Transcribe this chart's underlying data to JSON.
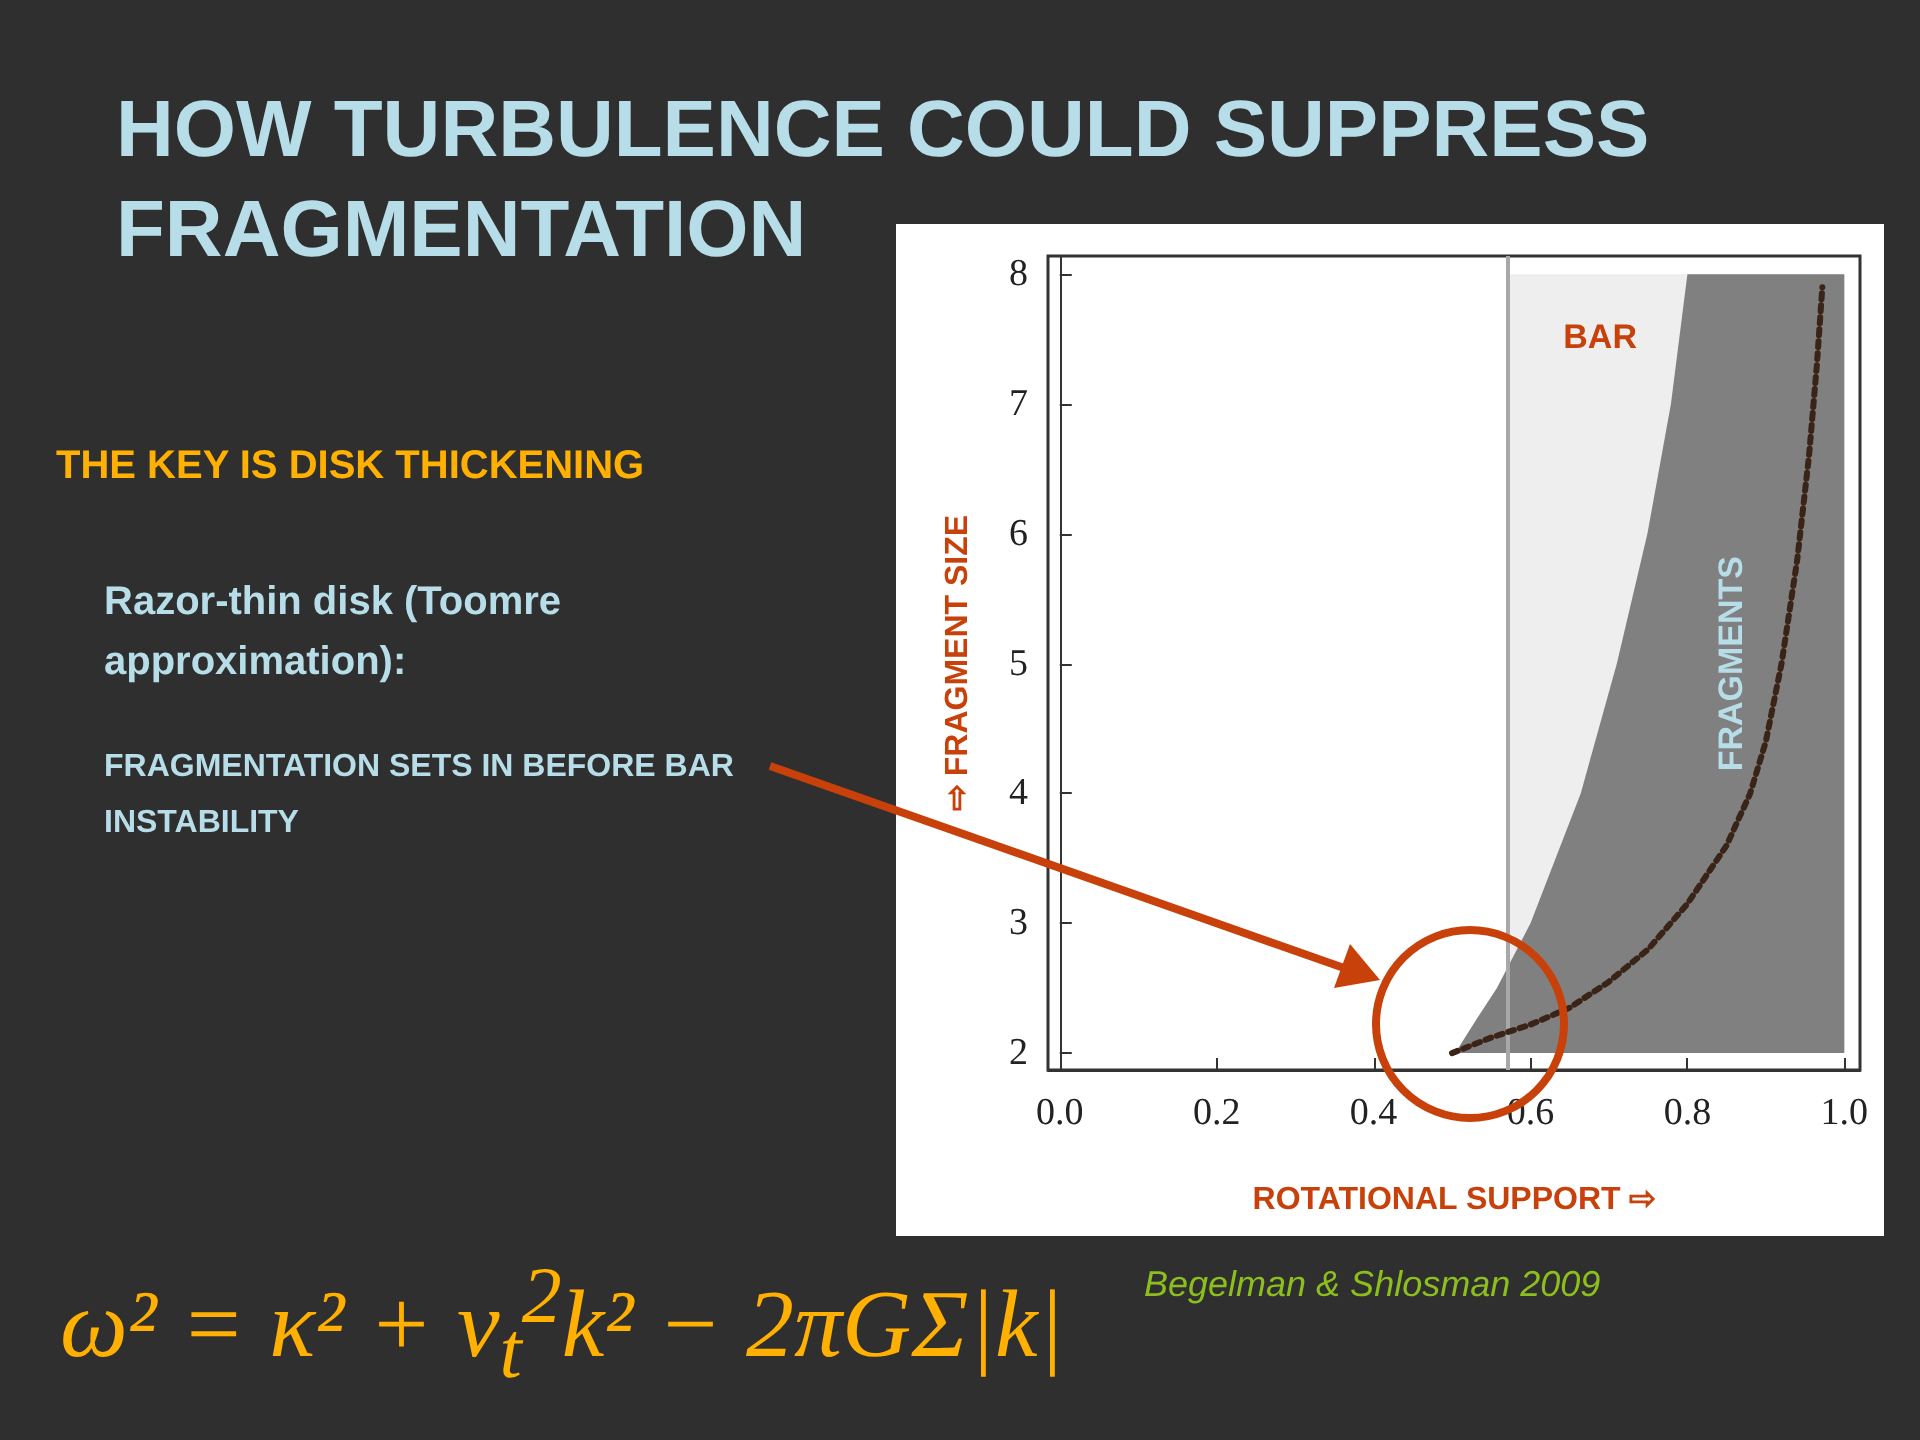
{
  "chart_data": {
    "type": "area",
    "title": "HOW TURBULENCE COULD SUPPRESS FRAGMENTATION",
    "xlabel": "ROTATIONAL SUPPORT ⇨",
    "ylabel": "⇨ FRAGMENT SIZE",
    "annotations": [
      "THE KEY IS DISK THICKENING",
      "Razor-thin disk (Toomre approximation):",
      "FRAGMENTATION SETS IN BEFORE BAR INSTABILITY",
      "ω² = κ² + v$_{t}$$^{2}$k² − 2πGΣ|k|",
      "Begelman & Shlosman 2009"
    ],
    "series": [
      {
        "name": "FRAGMENTS",
        "color": "#808080",
        "x": [
          0.504,
          0.53,
          0.557,
          0.6,
          0.664,
          0.71,
          0.749,
          0.779,
          0.8,
          1.0
        ],
        "values": [
          2,
          2.25,
          2.5,
          3,
          4,
          5,
          6,
          7,
          8,
          8
        ]
      },
      {
        "type": "line",
        "color": "#3a2418",
        "line_style": "dotted",
        "marker": "none",
        "x": [
          0.5,
          0.55,
          0.6,
          0.65,
          0.7,
          0.75,
          0.8,
          0.85,
          0.88,
          0.9,
          0.92,
          0.94,
          0.955,
          0.965,
          0.972
        ],
        "values": [
          2,
          2.12,
          2.22,
          2.35,
          2.55,
          2.8,
          3.15,
          3.6,
          4.0,
          4.4,
          5.0,
          5.8,
          6.6,
          7.3,
          7.9
        ]
      }
    ],
    "bands": [
      {
        "axis": "x",
        "from": 0.573,
        "to": 1.0,
        "label": "BAR",
        "color": "#eeeeee"
      }
    ],
    "ref_lines": [
      {
        "axis": "x",
        "value": 0.573,
        "color": "#a8a8a8"
      }
    ],
    "xlim": [
      -0.015,
      1.02
    ],
    "xticks": [
      {
        "value": 0,
        "label": "0.0"
      },
      {
        "value": 0.2,
        "label": "0.2"
      },
      {
        "value": 0.4,
        "label": "0.4"
      },
      {
        "value": 0.6,
        "label": "0.6"
      },
      {
        "value": 0.8,
        "label": "0.8"
      },
      {
        "value": 1.0,
        "label": "1.0"
      }
    ],
    "ylim": [
      1.87,
      8.14
    ],
    "yticks": [
      2,
      3,
      4,
      5,
      6,
      7,
      8
    ]
  }
}
